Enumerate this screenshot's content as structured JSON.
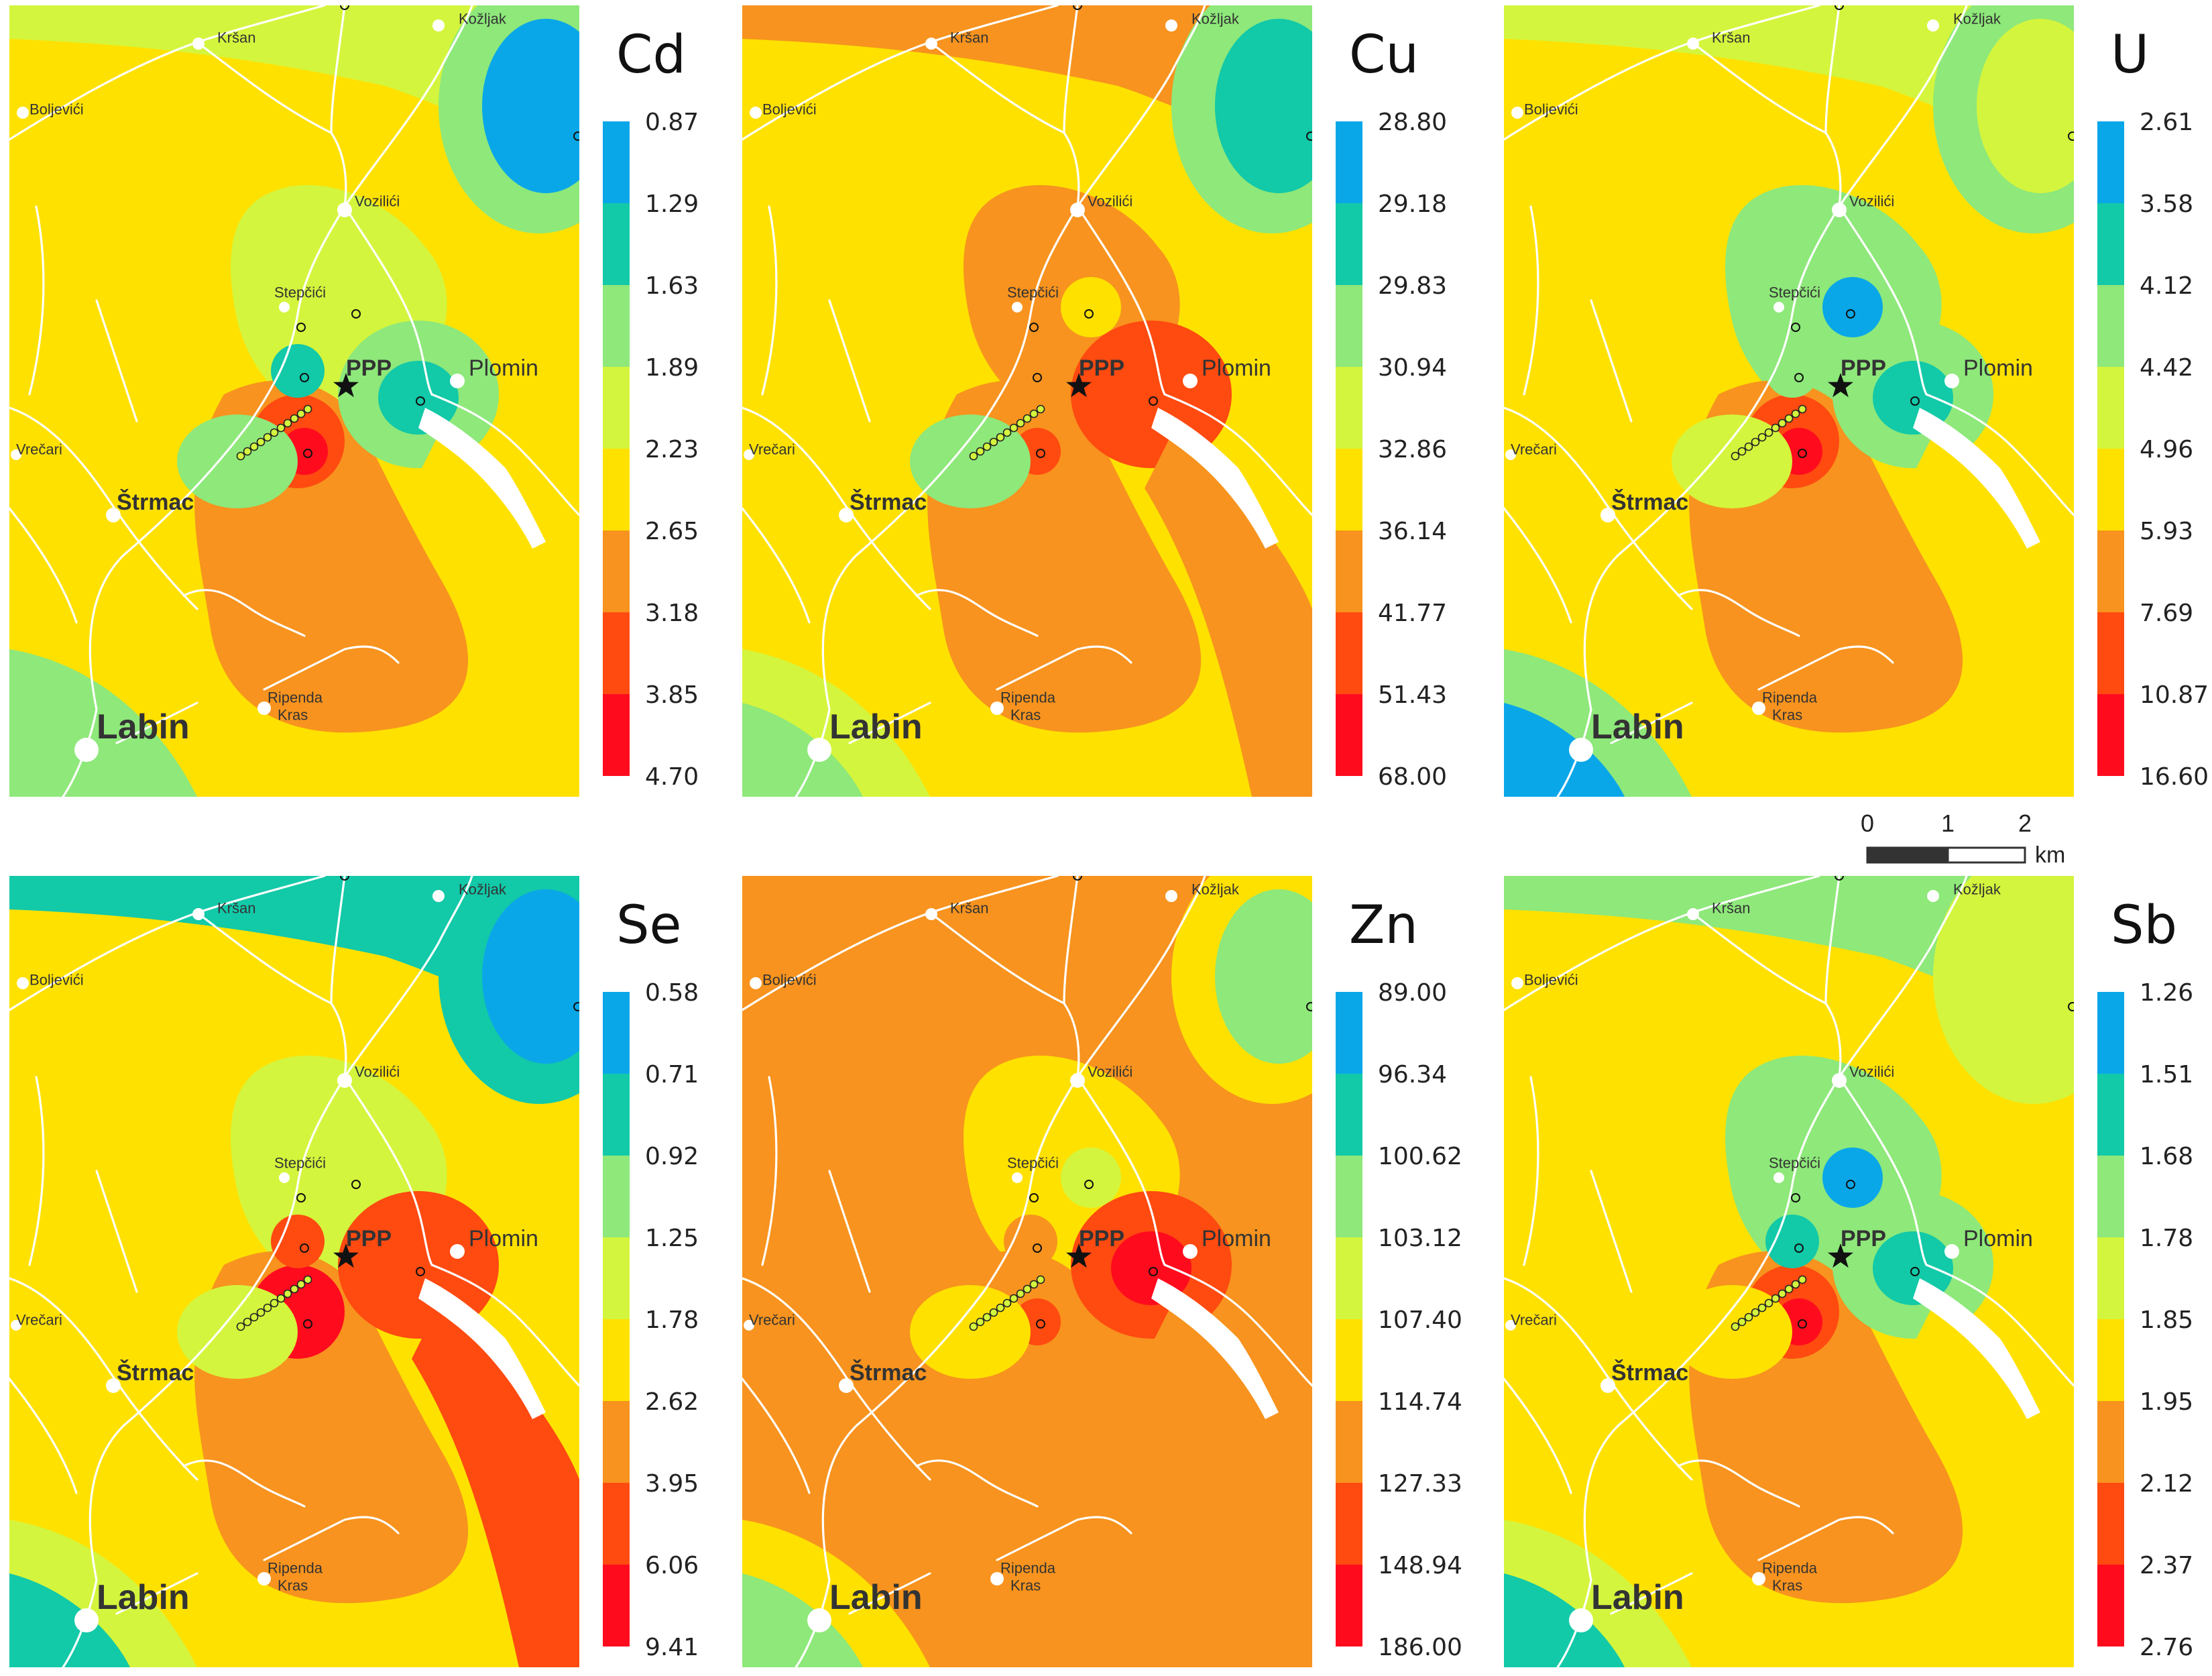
{
  "colors": {
    "yellow": "#ffe100",
    "orange": "#f7931e",
    "red_orange": "#ff4a10",
    "red": "#ff0b1e",
    "yellow_green": "#d4f53d",
    "light_green": "#8ee87a",
    "teal": "#12c9a8",
    "blue": "#0aa7e8",
    "white": "#ffffff"
  },
  "towns": {
    "krsan": "Kršan",
    "kozljak": "Kožljak",
    "boljevici": "Boljevići",
    "vozilici": "Vozilići",
    "stepcici": "Stepčići",
    "plomin": "Plomin",
    "ppp": "PPP",
    "vrecari": "Vrečari",
    "strmac": "Štrmac",
    "labin": "Labin",
    "ripenda": "Ripenda",
    "kras": "Kras"
  },
  "panels": [
    {
      "element": "Cd",
      "legend": [
        "0.87",
        "1.29",
        "1.63",
        "1.89",
        "2.23",
        "2.65",
        "3.18",
        "3.85",
        "4.70"
      ]
    },
    {
      "element": "Cu",
      "legend": [
        "28.80",
        "29.18",
        "29.83",
        "30.94",
        "32.86",
        "36.14",
        "41.77",
        "51.43",
        "68.00"
      ]
    },
    {
      "element": "U",
      "legend": [
        "2.61",
        "3.58",
        "4.12",
        "4.42",
        "4.96",
        "5.93",
        "7.69",
        "10.87",
        "16.60"
      ]
    },
    {
      "element": "Se",
      "legend": [
        "0.58",
        "0.71",
        "0.92",
        "1.25",
        "1.78",
        "2.62",
        "3.95",
        "6.06",
        "9.41"
      ]
    },
    {
      "element": "Zn",
      "legend": [
        "89.00",
        "96.34",
        "100.62",
        "103.12",
        "107.40",
        "114.74",
        "127.33",
        "148.94",
        "186.00"
      ]
    },
    {
      "element": "Sb",
      "legend": [
        "1.26",
        "1.51",
        "1.68",
        "1.78",
        "1.85",
        "1.95",
        "2.12",
        "2.37",
        "2.76"
      ]
    }
  ],
  "scale_bar": {
    "ticks": [
      "0",
      "1",
      "2"
    ],
    "unit": "km"
  }
}
